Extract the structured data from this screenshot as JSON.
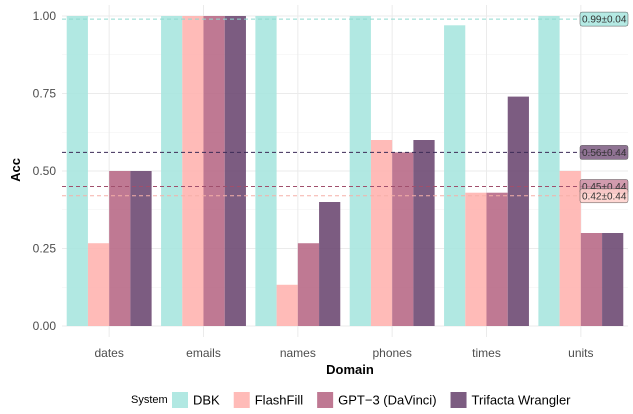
{
  "chart_data": {
    "type": "bar",
    "title": "",
    "xlabel": "Domain",
    "ylabel": "Acc",
    "ylim": [
      0,
      1
    ],
    "yticks": [
      0.0,
      0.25,
      0.5,
      0.75,
      1.0
    ],
    "ytick_labels": [
      "0.00",
      "0.25",
      "0.50",
      "0.75",
      "1.00"
    ],
    "categories": [
      "dates",
      "emails",
      "names",
      "phones",
      "times",
      "units"
    ],
    "legend_title": "System",
    "legend_position": "bottom",
    "grid": true,
    "series": [
      {
        "name": "DBK",
        "color": "#a8e6df",
        "values": [
          1.0,
          1.0,
          1.0,
          1.0,
          0.97,
          1.0
        ]
      },
      {
        "name": "FlashFill",
        "color": "#ffb4b0",
        "values": [
          0.267,
          1.0,
          0.133,
          0.6,
          0.43,
          0.5
        ]
      },
      {
        "name": "GPT−3 (DaVinci)",
        "color": "#b86a87",
        "values": [
          0.5,
          1.0,
          0.267,
          0.56,
          0.43,
          0.3
        ]
      },
      {
        "name": "Trifacta Wrangler",
        "color": "#6e4a73",
        "values": [
          0.5,
          1.0,
          0.4,
          0.6,
          0.74,
          0.3
        ]
      }
    ],
    "mean_lines": [
      {
        "series": "DBK",
        "value": 0.99,
        "label": "0.99±0.04",
        "line_color": "#8fd9cf",
        "fill": "#a8e6df",
        "dash": true
      },
      {
        "series": "Trifacta Wrangler",
        "value": 0.56,
        "label": "0.56±0.44",
        "line_color": "#3d2b57",
        "fill": "#7b5a80",
        "dash": true
      },
      {
        "series": "GPT−3 (DaVinci)",
        "value": 0.45,
        "label": "0.45±0.44",
        "line_color": "#a04f6c",
        "fill": "#c98aa0",
        "dash": true
      },
      {
        "series": "FlashFill",
        "value": 0.42,
        "label": "0.42±0.44",
        "line_color": "#f5b0a8",
        "fill": "#ffd0cb",
        "dash": true
      }
    ]
  }
}
